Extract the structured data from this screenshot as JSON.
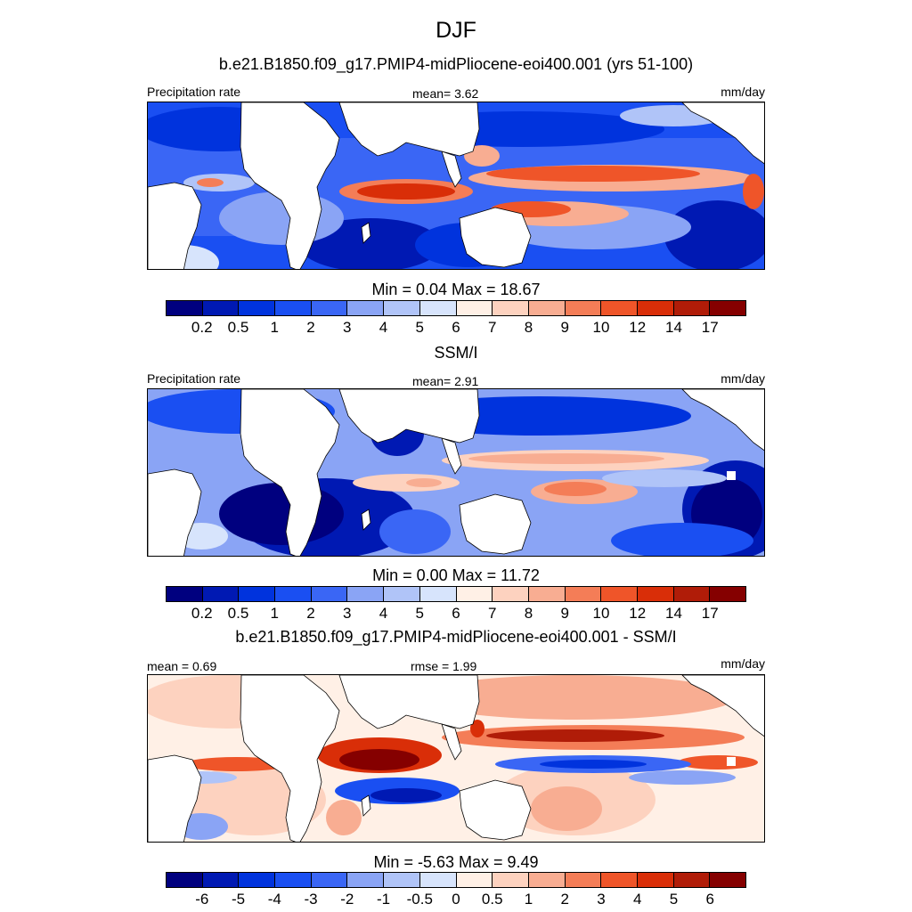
{
  "header": {
    "season": "DJF"
  },
  "panels": [
    {
      "title": "b.e21.B1850.f09_g17.PMIP4-midPliocene-eoi400.001 (yrs 51-100)",
      "left_label": "Precipitation rate",
      "center_label": "mean=   3.62",
      "right_label": "mm/day",
      "minmax": "Min =   0.04 Max =  18.67",
      "scale": "abs"
    },
    {
      "title": "SSM/I",
      "left_label": "Precipitation rate",
      "center_label": "mean=   2.91",
      "right_label": "mm/day",
      "minmax": "Min =   0.00 Max =  11.72",
      "scale": "abs"
    },
    {
      "title": "b.e21.B1850.f09_g17.PMIP4-midPliocene-eoi400.001 - SSM/I",
      "left_label": "mean =   0.69",
      "center_label": "rmse =   1.99",
      "right_label": "mm/day",
      "minmax": "Min =  -5.63 Max =   9.49",
      "scale": "diff"
    }
  ],
  "colorbars": {
    "abs": {
      "ticks": [
        "0.2",
        "0.5",
        "1",
        "2",
        "3",
        "4",
        "5",
        "6",
        "7",
        "8",
        "9",
        "10",
        "12",
        "14",
        "17"
      ],
      "colors": [
        "#00007f",
        "#0019b3",
        "#0033dd",
        "#1a4ff2",
        "#3a66f5",
        "#8aa4f5",
        "#b0c4f8",
        "#d7e4fc",
        "#fff0e6",
        "#fdd2bf",
        "#f8ad92",
        "#f47d57",
        "#ef5529",
        "#d92e08",
        "#b01c08",
        "#850000"
      ]
    },
    "diff": {
      "ticks": [
        "-6",
        "-5",
        "-4",
        "-3",
        "-2",
        "-1",
        "-0.5",
        "0",
        "0.5",
        "1",
        "2",
        "3",
        "4",
        "5",
        "6"
      ],
      "colors": [
        "#00007f",
        "#0019b3",
        "#0033dd",
        "#1a4ff2",
        "#3a66f5",
        "#8aa4f5",
        "#b0c4f8",
        "#d7e4fc",
        "#fff0e6",
        "#fdd2bf",
        "#f8ad92",
        "#f47d57",
        "#ef5529",
        "#d92e08",
        "#b01c08",
        "#850000"
      ]
    }
  }
}
